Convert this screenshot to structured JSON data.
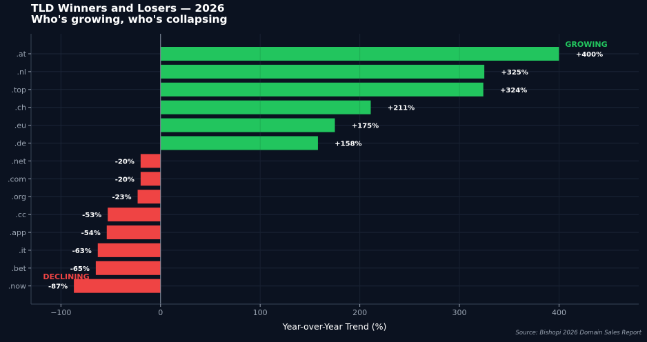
{
  "chart_data": {
    "type": "bar",
    "orientation": "horizontal",
    "title": "TLD Winners and Losers — 2026",
    "subtitle": "Who's growing, who's collapsing",
    "xlabel": "Year-over-Year Trend (%)",
    "ylabel": "",
    "xlim": [
      -130,
      480
    ],
    "xticks": [
      -100,
      0,
      100,
      200,
      300,
      400
    ],
    "xtick_labels": [
      "−100",
      "0",
      "100",
      "200",
      "300",
      "400"
    ],
    "grid": true,
    "categories": [
      ".at",
      ".nl",
      ".top",
      ".ch",
      ".eu",
      ".de",
      ".net",
      ".com",
      ".org",
      ".cc",
      ".app",
      ".it",
      ".bet",
      ".now"
    ],
    "values": [
      400,
      325,
      324,
      211,
      175,
      158,
      -20,
      -20,
      -23,
      -53,
      -54,
      -63,
      -65,
      -87
    ],
    "value_labels": [
      "+400%",
      "+325%",
      "+324%",
      "+211%",
      "+175%",
      "+158%",
      "-20%",
      "-20%",
      "-23%",
      "-53%",
      "-54%",
      "-63%",
      "-65%",
      "-87%"
    ],
    "annotations": {
      "growing": "GROWING",
      "declining": "DECLINING"
    },
    "source": "Source: Bishopi 2026 Domain Sales Report",
    "colors": {
      "background": "#0b1220",
      "positive": "#22c55e",
      "negative": "#ef4444",
      "grid": "#1c2638",
      "axis": "#3a4558",
      "text": "#ffffff",
      "muted": "#9aa4b2"
    }
  }
}
